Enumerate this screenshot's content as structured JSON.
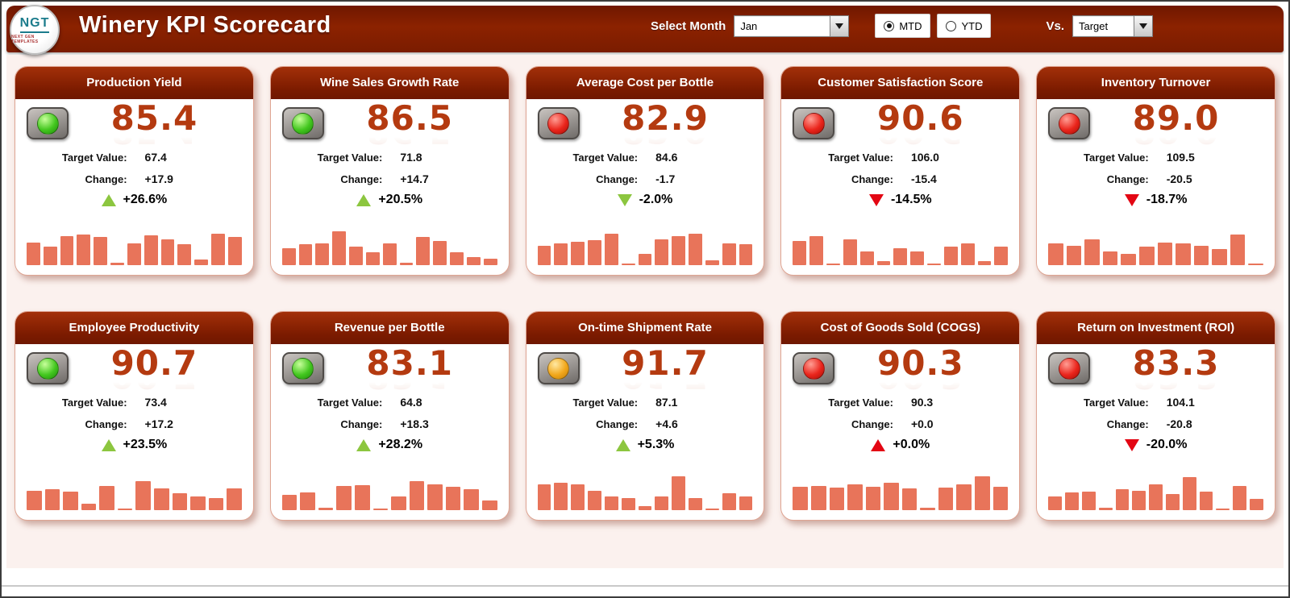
{
  "header": {
    "logo": {
      "text": "NGT",
      "subtext": "NEXT GEN TEMPLATES"
    },
    "title": "Winery KPI Scorecard",
    "select_month_label": "Select Month",
    "month_value": "Jan",
    "period_options": [
      {
        "label": "MTD",
        "selected": true
      },
      {
        "label": "YTD",
        "selected": false
      }
    ],
    "vs_label": "Vs.",
    "vs_value": "Target"
  },
  "colors": {
    "header_bg": "#7a1c00",
    "card_header_bg": "#7c1b00",
    "value_color": "#b43a10",
    "bar_color": "#e8745a",
    "light_green": "#43c71f",
    "light_red": "#ea251c",
    "light_yellow": "#f2a71b",
    "arrow_green": "#8cc63f",
    "arrow_red": "#e30613",
    "canvas_bg": "#fbf1ee"
  },
  "cards": [
    {
      "title": "Production Yield",
      "light": "green",
      "value": "85.4",
      "target_label": "Target Value:",
      "target": "67.4",
      "change_label": "Change:",
      "change": "+17.9",
      "arrow": "up",
      "arrow_color": "green",
      "pct": "+26.6%",
      "bars": [
        48,
        40,
        62,
        65,
        60,
        6,
        46,
        64,
        56,
        44,
        12,
        68,
        60
      ]
    },
    {
      "title": "Wine Sales Growth Rate",
      "light": "green",
      "value": "86.5",
      "target_label": "Target Value:",
      "target": "71.8",
      "change_label": "Change:",
      "change": "+14.7",
      "arrow": "up",
      "arrow_color": "green",
      "pct": "+20.5%",
      "bars": [
        36,
        44,
        46,
        72,
        40,
        28,
        46,
        6,
        60,
        52,
        28,
        18,
        14
      ]
    },
    {
      "title": "Average Cost per Bottle",
      "light": "red",
      "value": "82.9",
      "target_label": "Target Value:",
      "target": "84.6",
      "change_label": "Change:",
      "change": "-1.7",
      "arrow": "down",
      "arrow_color": "green",
      "pct": "-2.0%",
      "bars": [
        42,
        46,
        50,
        54,
        68,
        4,
        24,
        56,
        62,
        68,
        10,
        46,
        44
      ]
    },
    {
      "title": "Customer Satisfaction Score",
      "light": "red",
      "value": "90.6",
      "target_label": "Target Value:",
      "target": "106.0",
      "change_label": "Change:",
      "change": "-15.4",
      "arrow": "down",
      "arrow_color": "red",
      "pct": "-14.5%",
      "bars": [
        52,
        62,
        4,
        56,
        30,
        8,
        36,
        30,
        4,
        40,
        46,
        8,
        40
      ]
    },
    {
      "title": "Inventory Turnover",
      "light": "red",
      "value": "89.0",
      "target_label": "Target Value:",
      "target": "109.5",
      "change_label": "Change:",
      "change": "-20.5",
      "arrow": "down",
      "arrow_color": "red",
      "pct": "-18.7%",
      "bars": [
        46,
        42,
        56,
        30,
        24,
        40,
        48,
        46,
        42,
        34,
        66,
        4
      ]
    },
    {
      "title": "Employee Productivity",
      "light": "green",
      "value": "90.7",
      "target_label": "Target Value:",
      "target": "73.4",
      "change_label": "Change:",
      "change": "+17.2",
      "arrow": "up",
      "arrow_color": "green",
      "pct": "+23.5%",
      "bars": [
        42,
        44,
        40,
        14,
        52,
        4,
        62,
        46,
        36,
        30,
        26,
        46
      ]
    },
    {
      "title": "Revenue per Bottle",
      "light": "green",
      "value": "83.1",
      "target_label": "Target Value:",
      "target": "64.8",
      "change_label": "Change:",
      "change": "+18.3",
      "arrow": "up",
      "arrow_color": "green",
      "pct": "+28.2%",
      "bars": [
        32,
        38,
        6,
        52,
        54,
        4,
        30,
        62,
        56,
        50,
        44,
        20
      ]
    },
    {
      "title": "On-time Shipment Rate",
      "light": "yellow",
      "value": "91.7",
      "target_label": "Target Value:",
      "target": "87.1",
      "change_label": "Change:",
      "change": "+4.6",
      "arrow": "up",
      "arrow_color": "green",
      "pct": "+5.3%",
      "bars": [
        56,
        58,
        56,
        42,
        30,
        26,
        8,
        30,
        72,
        26,
        4,
        36,
        30
      ]
    },
    {
      "title": "Cost of Goods Sold (COGS)",
      "light": "red",
      "value": "90.3",
      "target_label": "Target Value:",
      "target": "90.3",
      "change_label": "Change:",
      "change": "+0.0",
      "arrow": "up",
      "arrow_color": "red",
      "pct": "+0.0%",
      "bars": [
        50,
        52,
        48,
        56,
        50,
        58,
        46,
        6,
        48,
        56,
        72,
        50
      ]
    },
    {
      "title": "Return on Investment (ROI)",
      "light": "red",
      "value": "83.3",
      "target_label": "Target Value:",
      "target": "104.1",
      "change_label": "Change:",
      "change": "-20.8",
      "arrow": "down",
      "arrow_color": "red",
      "pct": "-20.0%",
      "bars": [
        30,
        38,
        40,
        6,
        44,
        42,
        56,
        34,
        70,
        40,
        4,
        52,
        24
      ]
    }
  ]
}
